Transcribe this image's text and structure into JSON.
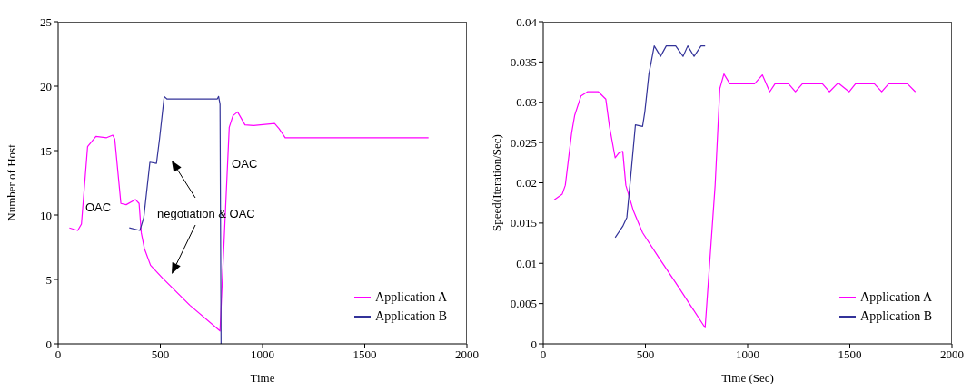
{
  "chart_data": [
    {
      "type": "line",
      "xlabel": "Time",
      "ylabel": "Number of Host",
      "xlim": [
        0,
        2000
      ],
      "xticks": [
        0,
        500,
        1000,
        1500,
        2000
      ],
      "ylim": [
        0,
        25
      ],
      "yticks": [
        0,
        5,
        10,
        15,
        20,
        25
      ],
      "grid": false,
      "legend": "bottom right",
      "marker": "none",
      "line_style": "solid",
      "annotations": [
        "OAC",
        "negotiation & OAC",
        "OAC"
      ],
      "series": [
        {
          "name": "Application A",
          "color": "#ff00ff",
          "x": [
            55,
            96,
            114,
            144,
            185,
            237,
            267,
            277,
            307,
            333,
            378,
            396,
            407,
            422,
            452,
            511,
            644,
            792,
            837,
            855,
            878,
            914,
            956,
            1059,
            1081,
            1111,
            1148,
            1812
          ],
          "values": [
            9.0,
            8.8,
            9.3,
            15.3,
            16.1,
            16.0,
            16.2,
            15.9,
            10.9,
            10.8,
            11.2,
            10.9,
            8.6,
            7.4,
            6.1,
            5.1,
            3.0,
            1.0,
            16.8,
            17.7,
            18.0,
            17.0,
            16.95,
            17.1,
            16.7,
            16.0,
            16.0,
            16.0
          ]
        },
        {
          "name": "Application B",
          "color": "#333399",
          "x": [
            348,
            400,
            419,
            449,
            481,
            496,
            519,
            533,
            778,
            785,
            792,
            797
          ],
          "values": [
            9.0,
            8.8,
            9.8,
            14.1,
            14.0,
            15.9,
            19.2,
            19.0,
            19.0,
            19.2,
            18.6,
            0
          ]
        }
      ]
    },
    {
      "type": "line",
      "xlabel": "Time (Sec)",
      "ylabel": "Speed(Iteration/Sec)",
      "xlim": [
        0,
        2000
      ],
      "xticks": [
        0,
        500,
        1000,
        1500,
        2000
      ],
      "ylim": [
        0,
        0.04
      ],
      "yticks": [
        0,
        0.005,
        0.01,
        0.015,
        0.02,
        0.025,
        0.03,
        0.035,
        0.04
      ],
      "grid": false,
      "legend": "bottom right",
      "marker": "none",
      "line_style": "solid",
      "series": [
        {
          "name": "Application A",
          "color": "#ff00ff",
          "x": [
            54,
            93,
            108,
            139,
            154,
            185,
            216,
            270,
            306,
            324,
            352,
            370,
            389,
            404,
            440,
            486,
            571,
            648,
            792,
            841,
            864,
            884,
            913,
            1034,
            1072,
            1108,
            1134,
            1200,
            1234,
            1268,
            1366,
            1400,
            1443,
            1497,
            1528,
            1620,
            1656,
            1690,
            1782,
            1821
          ],
          "values": [
            0.0179,
            0.0186,
            0.0197,
            0.0262,
            0.0284,
            0.0308,
            0.0313,
            0.0313,
            0.0304,
            0.027,
            0.0231,
            0.0237,
            0.0239,
            0.0197,
            0.0166,
            0.0138,
            0.0105,
            0.0076,
            0.002,
            0.0197,
            0.0317,
            0.0335,
            0.0323,
            0.0323,
            0.0334,
            0.0313,
            0.0323,
            0.0323,
            0.0313,
            0.0323,
            0.0323,
            0.0313,
            0.0324,
            0.0313,
            0.0323,
            0.0323,
            0.0313,
            0.0323,
            0.0323,
            0.0313
          ]
        },
        {
          "name": "Application B",
          "color": "#333399",
          "x": [
            352,
            389,
            409,
            424,
            451,
            486,
            497,
            517,
            543,
            574,
            602,
            648,
            684,
            707,
            738,
            772,
            792
          ],
          "values": [
            0.0132,
            0.0146,
            0.0157,
            0.0197,
            0.0272,
            0.027,
            0.0288,
            0.0335,
            0.037,
            0.0357,
            0.037,
            0.037,
            0.0357,
            0.037,
            0.0357,
            0.037,
            0.037
          ]
        }
      ]
    }
  ]
}
